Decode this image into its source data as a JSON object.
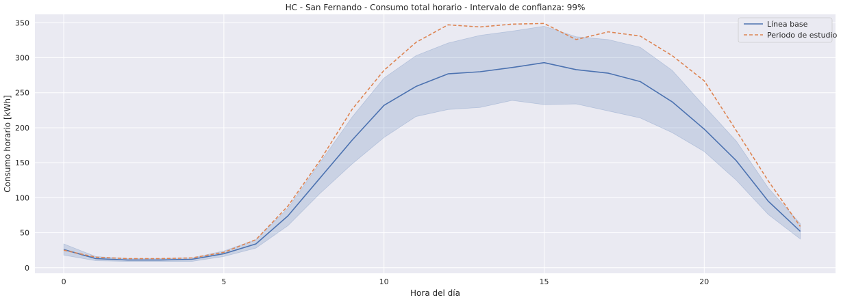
{
  "chart_data": {
    "type": "line",
    "title": "HC - San Fernando - Consumo total horario - Intervalo de confianza: 99%",
    "xlabel": "Hora del día",
    "ylabel": "Consumo horario [kWh]",
    "xlim": [
      -0.9,
      24.1
    ],
    "ylim": [
      -8,
      362
    ],
    "xticks": [
      0,
      5,
      10,
      15,
      20
    ],
    "yticks": [
      0,
      50,
      100,
      150,
      200,
      250,
      300,
      350
    ],
    "grid": true,
    "legend_position": "top-right",
    "x": [
      0,
      1,
      2,
      3,
      4,
      5,
      6,
      7,
      8,
      9,
      10,
      11,
      12,
      13,
      14,
      15,
      16,
      17,
      18,
      19,
      20,
      21,
      22,
      23
    ],
    "series": [
      {
        "name": "Línea base",
        "color": "#4c72b0",
        "style": "solid",
        "values": [
          26,
          13,
          11,
          11,
          12,
          20,
          34,
          74,
          128,
          182,
          232,
          259,
          277,
          280,
          286,
          293,
          283,
          278,
          266,
          237,
          198,
          153,
          95,
          52
        ],
        "ci_lower": [
          18,
          10,
          9,
          9,
          9,
          16,
          28,
          60,
          106,
          148,
          186,
          216,
          226,
          229,
          239,
          233,
          234,
          224,
          214,
          193,
          166,
          125,
          76,
          41
        ],
        "ci_upper": [
          34,
          16,
          13,
          13,
          14,
          24,
          40,
          85,
          150,
          215,
          271,
          303,
          321,
          332,
          338,
          345,
          330,
          326,
          315,
          282,
          231,
          181,
          114,
          63
        ]
      },
      {
        "name": "Periodo de estudio",
        "color": "#dd8452",
        "style": "dashed",
        "values": [
          25,
          15,
          13,
          13,
          14,
          22,
          40,
          88,
          153,
          226,
          282,
          322,
          347,
          344,
          348,
          349,
          326,
          337,
          331,
          303,
          267,
          196,
          124,
          59
        ]
      }
    ]
  }
}
